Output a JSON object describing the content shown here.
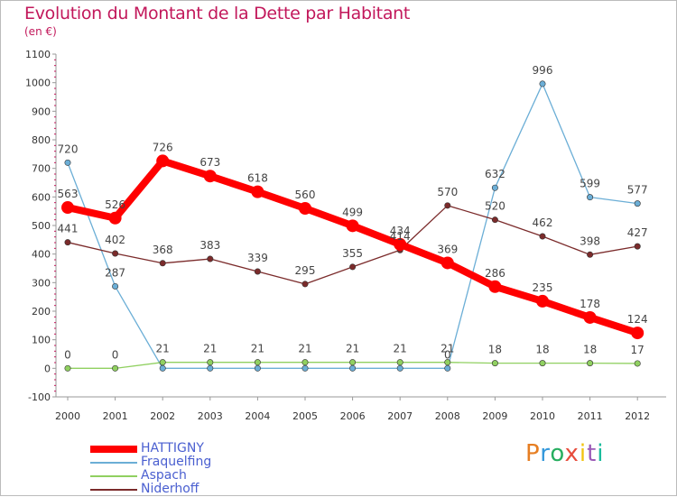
{
  "title": "Evolution du Montant de la Dette par Habitant",
  "subtitle": "(en €)",
  "brand": "Proxiti",
  "chart_data": {
    "type": "line",
    "title": "Evolution du Montant de la Dette par Habitant",
    "ylabel": "(en €)",
    "x": [
      "2000",
      "2001",
      "2002",
      "2003",
      "2004",
      "2005",
      "2006",
      "2007",
      "2008",
      "2009",
      "2010",
      "2011",
      "2012"
    ],
    "ylim": [
      -100,
      1100
    ],
    "yticks": [
      -100,
      0,
      100,
      200,
      300,
      400,
      500,
      600,
      700,
      800,
      900,
      1000,
      1100
    ],
    "grid": false,
    "legend_position": "bottom-left",
    "series": [
      {
        "name": "HATTIGNY",
        "color": "#ff0000",
        "values": [
          563,
          526,
          726,
          673,
          618,
          560,
          499,
          434,
          369,
          286,
          235,
          178,
          124
        ],
        "labels": [
          563,
          526,
          726,
          673,
          618,
          560,
          499,
          434,
          369,
          286,
          235,
          178,
          124
        ]
      },
      {
        "name": "Fraquelfing",
        "color": "#6baed6",
        "values": [
          720,
          287,
          0,
          0,
          0,
          0,
          0,
          0,
          0,
          632,
          996,
          599,
          577
        ],
        "labels": [
          720,
          287,
          null,
          null,
          null,
          null,
          null,
          null,
          0,
          632,
          996,
          599,
          577
        ]
      },
      {
        "name": "Aspach",
        "color": "#90d060",
        "values": [
          0,
          0,
          21,
          21,
          21,
          21,
          21,
          21,
          21,
          18,
          18,
          18,
          17
        ],
        "labels": [
          0,
          0,
          21,
          21,
          21,
          21,
          21,
          21,
          21,
          18,
          18,
          18,
          17
        ]
      },
      {
        "name": "Niderhoff",
        "color": "#7b2b2b",
        "values": [
          441,
          402,
          368,
          383,
          339,
          295,
          355,
          414,
          570,
          520,
          462,
          398,
          427
        ],
        "labels": [
          441,
          402,
          368,
          383,
          339,
          295,
          355,
          414,
          570,
          520,
          462,
          398,
          427
        ]
      }
    ]
  }
}
